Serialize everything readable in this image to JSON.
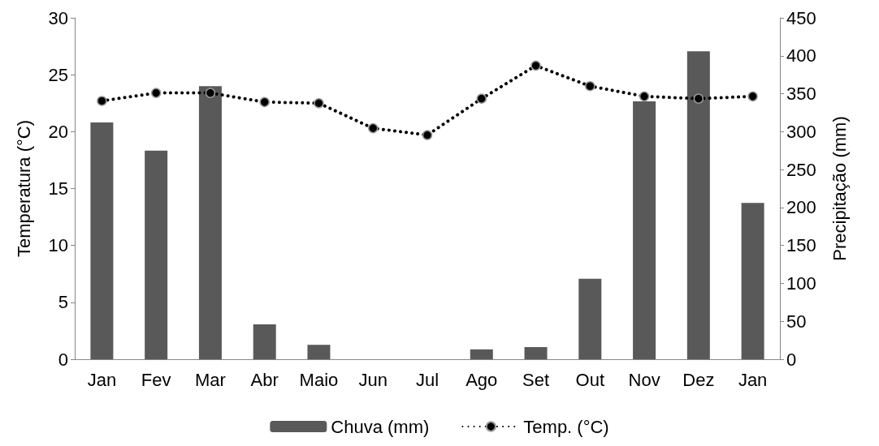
{
  "chart_data": {
    "type": "bar",
    "categories": [
      "Jan",
      "Fev",
      "Mar",
      "Abr",
      "Maio",
      "Jun",
      "Jul",
      "Ago",
      "Set",
      "Out",
      "Nov",
      "Dez",
      "Jan"
    ],
    "series": [
      {
        "name": "Chuva (mm)",
        "axis": "y2",
        "color": "#595959",
        "values": [
          312,
          275,
          360,
          46,
          19,
          0,
          0,
          13,
          16,
          106,
          340,
          406,
          206
        ]
      },
      {
        "name": "Temp. (°C)",
        "type": "line",
        "color": "#000000",
        "line_style": "dotted",
        "marker": "circle",
        "values": [
          22.7,
          23.4,
          23.4,
          22.6,
          22.5,
          20.3,
          19.7,
          22.9,
          25.8,
          24.0,
          23.1,
          22.9,
          23.1
        ]
      }
    ],
    "ylabel": "Temperatura (°C)",
    "y2label": "Precipitação (mm)",
    "ylim": [
      0,
      30
    ],
    "yticks": [
      0,
      5,
      10,
      15,
      20,
      25,
      30
    ],
    "y2lim": [
      0,
      450
    ],
    "y2ticks": [
      0,
      50,
      100,
      150,
      200,
      250,
      300,
      350,
      400,
      450
    ],
    "grid": false,
    "legend": "bottom"
  }
}
